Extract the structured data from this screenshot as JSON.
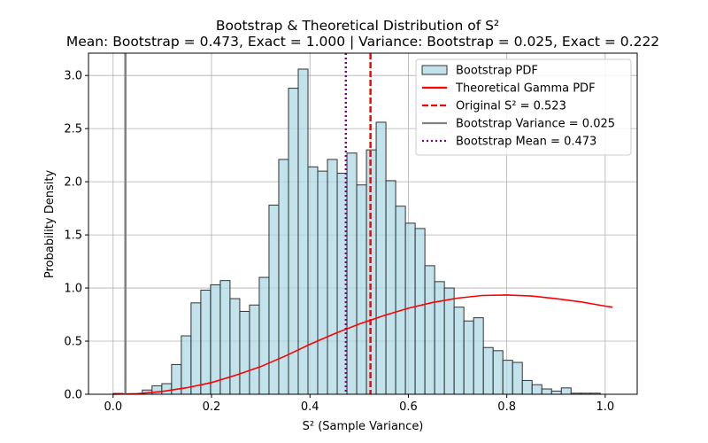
{
  "chart_data": {
    "type": "bar",
    "title": "Bootstrap & Theoretical Distribution of S²",
    "subtitle": "Mean: Bootstrap = 0.473, Exact = 1.000 | Variance: Bootstrap = 0.025, Exact = 0.222",
    "xlabel": "S² (Sample Variance)",
    "ylabel": "Probability Density",
    "xlim": [
      -0.05,
      1.065
    ],
    "ylim": [
      0,
      3.21
    ],
    "xticks": [
      0.0,
      0.2,
      0.4,
      0.6,
      0.8,
      1.0
    ],
    "xtick_labels": [
      "0.0",
      "0.2",
      "0.4",
      "0.6",
      "0.8",
      "1.0"
    ],
    "yticks": [
      0.0,
      0.5,
      1.0,
      1.5,
      2.0,
      2.5,
      3.0
    ],
    "ytick_labels": [
      "0.0",
      "0.5",
      "1.0",
      "1.5",
      "2.0",
      "2.5",
      "3.0"
    ],
    "grid": true,
    "legend_position": "top-right",
    "histogram": {
      "name": "Bootstrap PDF",
      "color": "#add8e6",
      "edge_color": "#333333",
      "bin_start": 0.0,
      "bin_width": 0.0198,
      "values": [
        0.008,
        0.0,
        0.0,
        0.04,
        0.08,
        0.1,
        0.28,
        0.55,
        0.86,
        0.98,
        1.03,
        1.07,
        0.9,
        0.78,
        0.84,
        1.1,
        1.78,
        2.21,
        2.88,
        3.06,
        2.14,
        2.1,
        2.21,
        2.08,
        2.27,
        1.97,
        2.3,
        2.56,
        2.01,
        1.77,
        1.61,
        1.56,
        1.21,
        1.06,
        1.0,
        0.82,
        0.69,
        0.72,
        0.44,
        0.41,
        0.32,
        0.3,
        0.13,
        0.09,
        0.05,
        0.03,
        0.06,
        0.01,
        0.01,
        0.01
      ]
    },
    "theoretical_curve": {
      "name": "Theoretical Gamma PDF",
      "color": "#ff0000",
      "x": [
        0.0,
        0.05,
        0.1,
        0.15,
        0.2,
        0.25,
        0.3,
        0.35,
        0.4,
        0.45,
        0.5,
        0.55,
        0.6,
        0.65,
        0.7,
        0.75,
        0.8,
        0.85,
        0.9,
        0.95,
        1.0,
        1.015
      ],
      "y": [
        0.0,
        0.006,
        0.027,
        0.062,
        0.11,
        0.18,
        0.26,
        0.36,
        0.47,
        0.57,
        0.66,
        0.74,
        0.81,
        0.865,
        0.905,
        0.93,
        0.935,
        0.925,
        0.9,
        0.87,
        0.83,
        0.82
      ]
    },
    "vertical_lines": [
      {
        "name": "Original S² = 0.523",
        "x": 0.523,
        "color": "#ff0000",
        "style": "dashed"
      },
      {
        "name": "Bootstrap Variance = 0.025",
        "x": 0.025,
        "color": "#808080",
        "style": "solid"
      },
      {
        "name": "Bootstrap Mean = 0.473",
        "x": 0.473,
        "color": "#800080",
        "style": "dotted"
      }
    ],
    "legend": [
      {
        "label": "Bootstrap PDF",
        "kind": "patch",
        "color": "#add8e6"
      },
      {
        "label": "Theoretical Gamma PDF",
        "kind": "line",
        "color": "#ff0000",
        "style": "solid"
      },
      {
        "label": "Original S² = 0.523",
        "kind": "line",
        "color": "#ff0000",
        "style": "dashed"
      },
      {
        "label": "Bootstrap Variance = 0.025",
        "kind": "line",
        "color": "#808080",
        "style": "solid"
      },
      {
        "label": "Bootstrap Mean = 0.473",
        "kind": "line",
        "color": "#800080",
        "style": "dotted"
      }
    ]
  }
}
